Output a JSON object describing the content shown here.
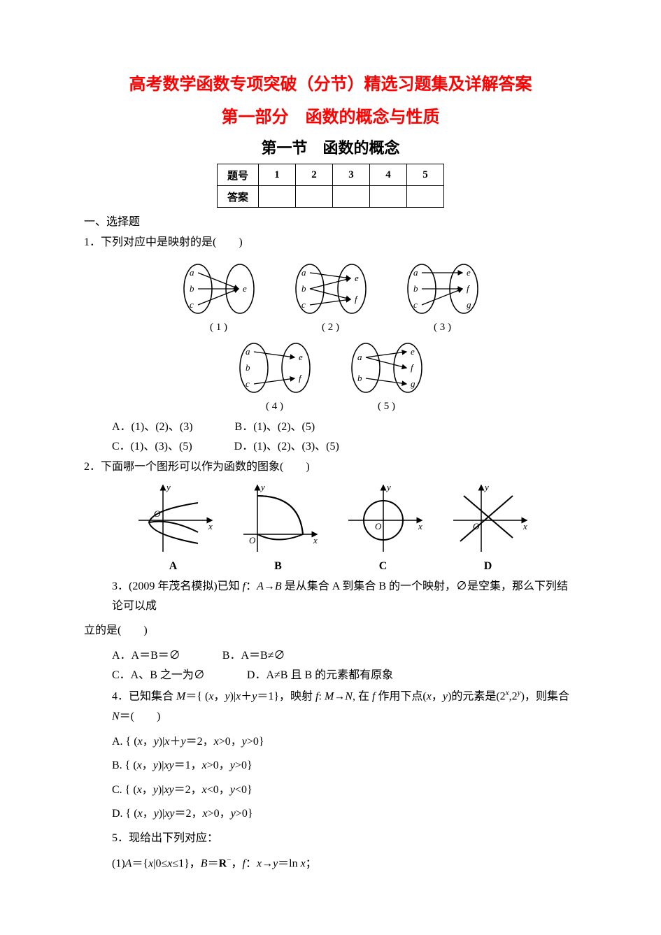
{
  "titles": {
    "t1": "高考数学函数专项突破（分节）精选习题集及详解答案",
    "t2": "第一部分　函数的概念与性质",
    "t3": "第一节　函数的概念"
  },
  "answer_table": {
    "headers": [
      "题号",
      "1",
      "2",
      "3",
      "4",
      "5"
    ],
    "row_label": "答案",
    "cells": [
      "",
      "",
      "",
      "",
      ""
    ]
  },
  "section1": "一、选择题",
  "q1": {
    "stem": "1．下列对应中是映射的是(　　)",
    "diagrams": {
      "row1": [
        {
          "label": "( 1 )",
          "left": [
            "a",
            "b",
            "c"
          ],
          "right": [
            "e"
          ],
          "arrows": [
            [
              0,
              0
            ],
            [
              1,
              0
            ],
            [
              2,
              0
            ]
          ]
        },
        {
          "label": "( 2 )",
          "left": [
            "a",
            "b",
            "c"
          ],
          "right": [
            "e",
            "f"
          ],
          "arrows": [
            [
              0,
              0
            ],
            [
              1,
              0
            ],
            [
              1,
              1
            ],
            [
              2,
              1
            ]
          ]
        },
        {
          "label": "( 3 )",
          "left": [
            "a",
            "b",
            "c"
          ],
          "right": [
            "e",
            "f",
            "g"
          ],
          "arrows": [
            [
              0,
              0
            ],
            [
              1,
              1
            ],
            [
              2,
              1
            ]
          ]
        }
      ],
      "row2": [
        {
          "label": "( 4 )",
          "left": [
            "a",
            "b",
            "c"
          ],
          "right": [
            "e",
            "f"
          ],
          "arrows": [
            [
              0,
              0
            ],
            [
              2,
              1
            ]
          ]
        },
        {
          "label": "( 5 )",
          "left": [
            "a",
            "b"
          ],
          "right": [
            "e",
            "f",
            "g"
          ],
          "arrows": [
            [
              0,
              0
            ],
            [
              0,
              1
            ],
            [
              1,
              2
            ]
          ]
        }
      ]
    },
    "opts": {
      "A": "A．(1)、(2)、(3)",
      "B": "B．(1)、(2)、(5)",
      "C": "C．(1)、(3)、(5)",
      "D": "D．(1)、(2)、(3)、(5)"
    }
  },
  "q2": {
    "stem": "2．下面哪一个图形可以作为函数的图象(　　)",
    "labels": [
      "A",
      "B",
      "C",
      "D"
    ]
  },
  "q3": {
    "stem_pre": "3．(2009 年茂名模拟)已知 ",
    "stem_mid": " 是从集合 A 到集合 B 的一个映射，∅是空集，那么下列结论可以成",
    "stem_end": "立的是(　　)",
    "opts": {
      "A": "A．A＝B＝∅",
      "B": "B．A＝B≠∅",
      "C": "C．A、B 之一为∅",
      "D": "D．A≠B 且 B 的元素都有原象"
    }
  },
  "q4": {
    "stem": "4．已知集合 M＝{ (x，y)|x＋y＝1}，映射 f: M→N, 在 f 作用下点(x，y)的元素是(2ˣ,2ʸ)，则集合 N＝(　　)",
    "opts": {
      "A": "A. { (x，y)|x＋y＝2，x>0，y>0}",
      "B": "B. { (x，y)|xy＝1，x>0，y>0}",
      "C": "C. { (x，y)|xy＝2，x<0，y<0}",
      "D": "D. { (x，y)|xy＝2，x>0，y>0}"
    }
  },
  "q5": {
    "stem": "5．现给出下列对应：",
    "item1": "(1)A＝{x|0≤x≤1}，B＝R⁻，f：x→y＝ln x；"
  },
  "style": {
    "page_bg": "#ffffff",
    "text_color": "#000000",
    "accent_color": "#ff0000",
    "border_color": "#000000",
    "body_fontsize": 16,
    "title_fontsize": 24,
    "section_fontsize": 22,
    "font_family_cn": "SimSun",
    "font_family_heading": "SimHei",
    "font_family_math": "Times New Roman"
  }
}
